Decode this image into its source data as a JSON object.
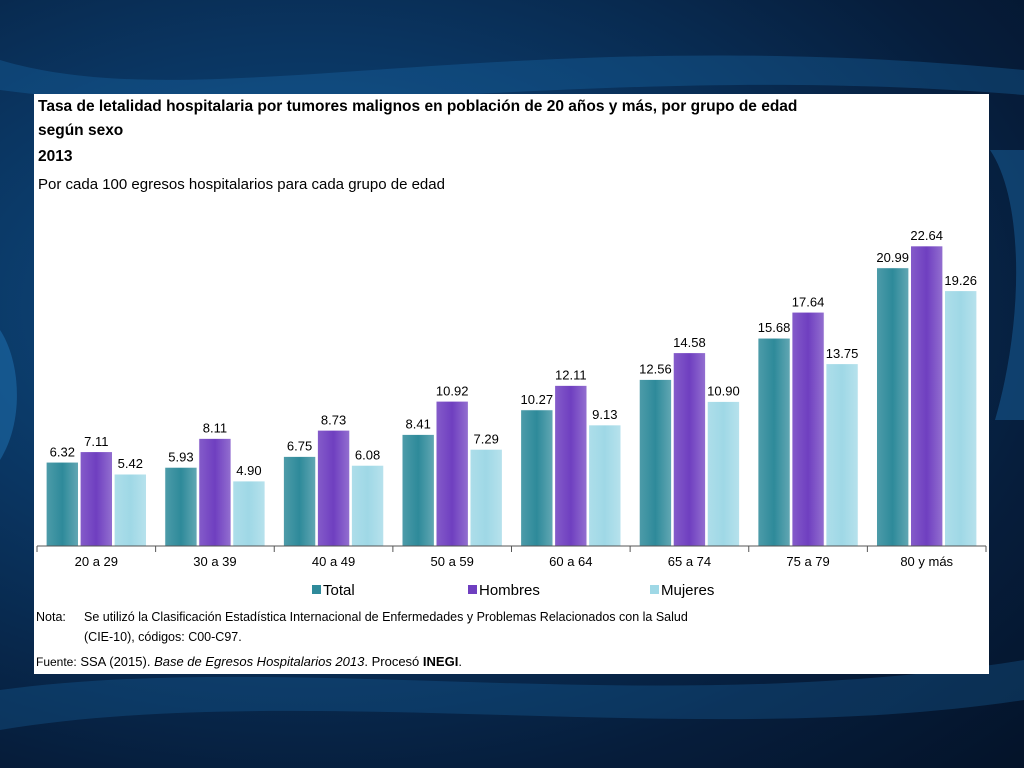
{
  "colors": {
    "total": "#2e8a9a",
    "hombres": "#6f3fc0",
    "mujeres": "#9fd8e6"
  },
  "header": {
    "title_line1": "Tasa de letalidad hospitalaria por tumores malignos en población de 20 años y más, por grupo de edad",
    "title_line2": "según sexo",
    "year": "2013",
    "subtitle": "Por cada 100 egresos hospitalarios para cada grupo de edad"
  },
  "footer": {
    "note_label": "Nota:",
    "note_line1": "Se utilizó la Clasificación Estadística Internacional de Enfermedades y Problemas Relacionados con la Salud",
    "note_line2": "(CIE-10), códigos: C00-C97.",
    "source_label": "Fuente:",
    "source_prefix": "SSA (2015).",
    "source_title": "Base de Egresos Hospitalarios 2013",
    "source_suffix": ". Procesó",
    "source_org": "INEGI",
    "source_end": "."
  },
  "chart_data": {
    "type": "bar",
    "categories": [
      "20 a 29",
      "30 a 39",
      "40 a 49",
      "50 a 59",
      "60 a 64",
      "65 a 74",
      "75 a 79",
      "80 y más"
    ],
    "series": [
      {
        "name": "Total",
        "values": [
          6.32,
          5.93,
          6.75,
          8.41,
          10.27,
          12.56,
          15.68,
          20.99
        ]
      },
      {
        "name": "Hombres",
        "values": [
          7.11,
          8.11,
          8.73,
          10.92,
          12.11,
          14.58,
          17.64,
          22.64
        ]
      },
      {
        "name": "Mujeres",
        "values": [
          5.42,
          4.9,
          6.08,
          7.29,
          9.13,
          10.9,
          13.75,
          19.26
        ]
      }
    ],
    "data_labels": [
      [
        "6.32",
        "5.93",
        "6.75",
        "8.41",
        "10.27",
        "12.56",
        "15.68",
        "20.99"
      ],
      [
        "7.11",
        "8.11",
        "8.73",
        "10.92",
        "12.11",
        "14.58",
        "17.64",
        "22.64"
      ],
      [
        "5.42",
        "4.90",
        "6.08",
        "7.29",
        "9.13",
        "10.90",
        "13.75",
        "19.26"
      ]
    ],
    "ylim": [
      0,
      24
    ],
    "grid": false,
    "legend_position": "bottom"
  }
}
